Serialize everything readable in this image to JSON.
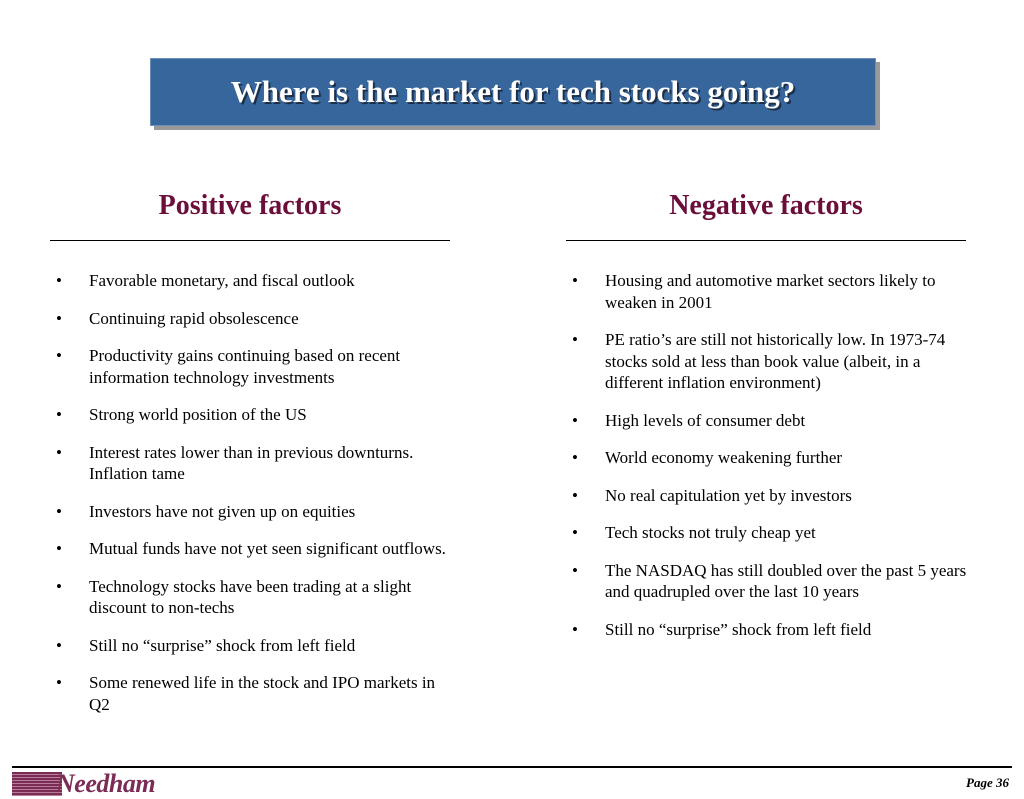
{
  "title": "Where is the market for tech stocks going?",
  "positive": {
    "heading": "Positive factors",
    "items": [
      "Favorable monetary, and fiscal outlook",
      "Continuing rapid obsolescence",
      "Productivity gains continuing based on recent information technology investments",
      "Strong world position of the US",
      "Interest rates lower than in previous downturns.  Inflation tame",
      "Investors have not given up on equities",
      "Mutual funds have not yet seen significant outflows.",
      "Technology stocks have been trading at a slight discount to non-techs",
      "Still no “surprise” shock from left field",
      "Some renewed life in the stock and IPO markets in Q2"
    ]
  },
  "negative": {
    "heading": "Negative factors",
    "items": [
      "Housing and automotive market sectors likely to weaken in 2001",
      "PE ratio’s are still not historically low. In 1973-74 stocks sold at less than book value (albeit, in a different inflation environment)",
      "High levels of consumer debt",
      "World economy weakening further",
      "No real capitulation yet by investors",
      "Tech stocks not truly cheap yet",
      "The NASDAQ has still doubled over the past 5 years and quadrupled over the last 10 years",
      "Still no “surprise” shock from left field"
    ]
  },
  "bullet_glyph": "•",
  "footer": {
    "logo": "Needham",
    "page": "Page 36"
  },
  "colors": {
    "title_bg": "#36669c",
    "heading": "#6b0f3a",
    "logo": "#7a2c55"
  }
}
